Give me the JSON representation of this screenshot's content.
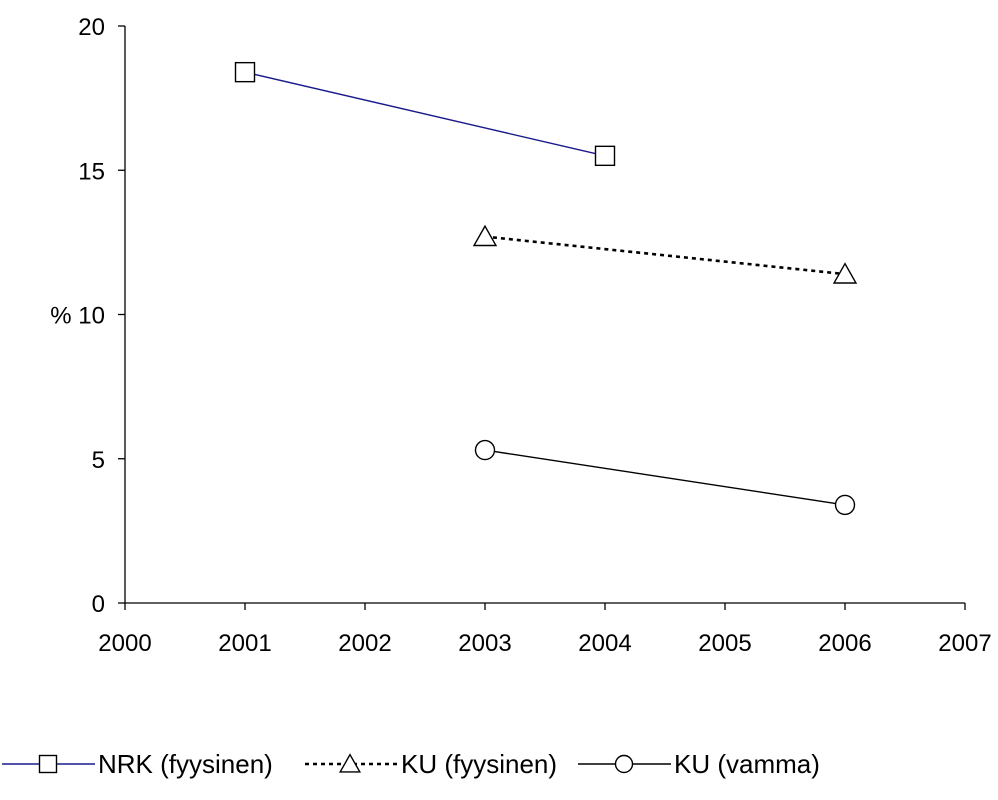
{
  "chart_data": {
    "type": "line",
    "title": "",
    "xlabel": "",
    "ylabel": "%",
    "xlim": [
      2000,
      2007
    ],
    "ylim": [
      0,
      20
    ],
    "x_ticks": [
      2000,
      2001,
      2002,
      2003,
      2004,
      2005,
      2006,
      2007
    ],
    "y_ticks": [
      0,
      5,
      10,
      15,
      20
    ],
    "x_tick_labels": [
      "2000",
      "2001",
      "2002",
      "2003",
      "2004",
      "2005",
      "2006",
      "2007"
    ],
    "y_tick_labels": [
      "0",
      "5",
      "% 10",
      "15",
      "20"
    ],
    "grid": false,
    "legend_position": "bottom",
    "series": [
      {
        "name": "NRK (fyysinen)",
        "marker": "square",
        "line_style": "solid",
        "color": "#1a1a8c",
        "points": [
          {
            "x": 2001,
            "y": 18.4
          },
          {
            "x": 2004,
            "y": 15.5
          }
        ]
      },
      {
        "name": "KU (fyysinen)",
        "marker": "triangle",
        "line_style": "dotted",
        "color": "#000000",
        "points": [
          {
            "x": 2003,
            "y": 12.7
          },
          {
            "x": 2006,
            "y": 11.4
          }
        ]
      },
      {
        "name": "KU (vamma)",
        "marker": "circle",
        "line_style": "solid",
        "color": "#000000",
        "points": [
          {
            "x": 2003,
            "y": 5.3
          },
          {
            "x": 2006,
            "y": 3.4
          }
        ]
      }
    ]
  }
}
